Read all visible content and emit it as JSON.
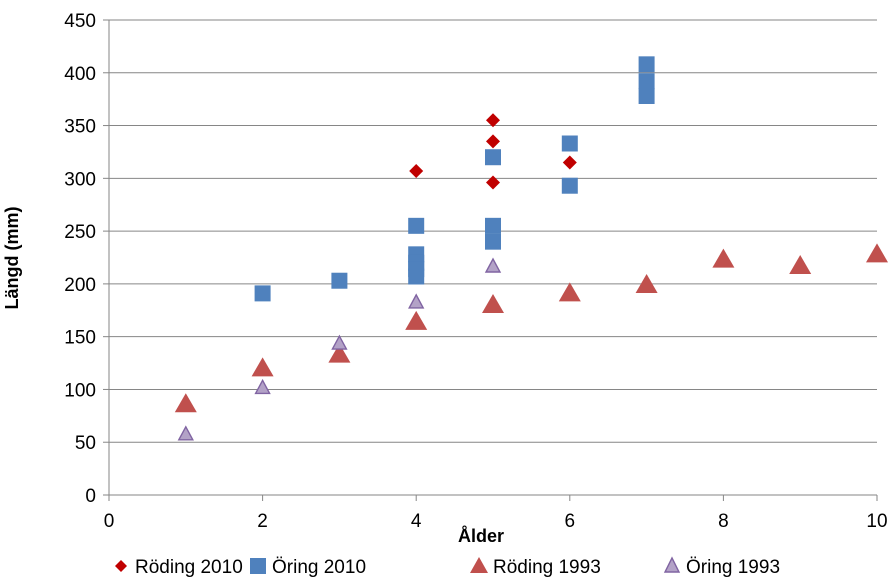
{
  "chart_data": {
    "type": "scatter",
    "title": "",
    "xlabel": "Ålder",
    "ylabel": "Längd (mm)",
    "xlim": [
      0,
      10
    ],
    "ylim": [
      0,
      450
    ],
    "xticks": [
      0,
      2,
      4,
      6,
      8,
      10
    ],
    "yticks": [
      0,
      50,
      100,
      150,
      200,
      250,
      300,
      350,
      400,
      450
    ],
    "grid": "horizontal",
    "legend_position": "bottom",
    "series": [
      {
        "name": "Röding 2010",
        "marker": "diamond",
        "color": "#C00000",
        "points": [
          [
            4,
            307
          ],
          [
            5,
            355
          ],
          [
            5,
            335
          ],
          [
            5,
            296
          ],
          [
            6,
            315
          ]
        ]
      },
      {
        "name": "Öring 2010",
        "marker": "square",
        "color": "#4F81BD",
        "points": [
          [
            2,
            191
          ],
          [
            3,
            203
          ],
          [
            4,
            255
          ],
          [
            4,
            228
          ],
          [
            4,
            220
          ],
          [
            4,
            214
          ],
          [
            4,
            207
          ],
          [
            5,
            320
          ],
          [
            5,
            255
          ],
          [
            5,
            240
          ],
          [
            6,
            333
          ],
          [
            6,
            293
          ],
          [
            7,
            408
          ],
          [
            7,
            392
          ],
          [
            7,
            378
          ]
        ]
      },
      {
        "name": "Röding 1993",
        "marker": "triangle",
        "color": "#C0504D",
        "points": [
          [
            1,
            86
          ],
          [
            2,
            120
          ],
          [
            3,
            133
          ],
          [
            4,
            164
          ],
          [
            5,
            180
          ],
          [
            6,
            191
          ],
          [
            7,
            199
          ],
          [
            8,
            223
          ],
          [
            9,
            217
          ],
          [
            10,
            228
          ]
        ]
      },
      {
        "name": "Öring 1993",
        "marker": "triangle",
        "color": "#8064A2",
        "points": [
          [
            1,
            57
          ],
          [
            2,
            101
          ],
          [
            3,
            143
          ],
          [
            4,
            182
          ],
          [
            5,
            216
          ]
        ]
      }
    ]
  }
}
